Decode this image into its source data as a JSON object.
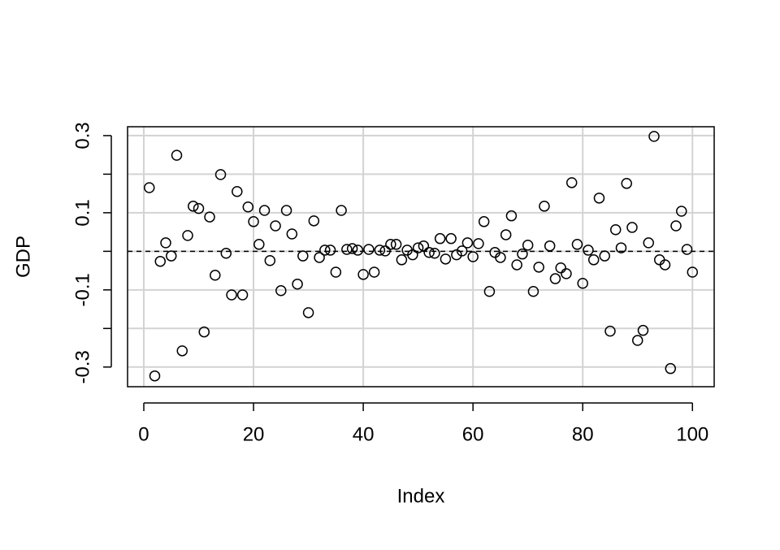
{
  "chart_data": {
    "type": "scatter",
    "x_label": "Index",
    "y_label": "GDP",
    "x": [
      1,
      2,
      3,
      4,
      5,
      6,
      7,
      8,
      9,
      10,
      11,
      12,
      13,
      14,
      15,
      16,
      17,
      18,
      19,
      20,
      21,
      22,
      23,
      24,
      25,
      26,
      27,
      28,
      29,
      30,
      31,
      32,
      33,
      34,
      35,
      36,
      37,
      38,
      39,
      40,
      41,
      42,
      43,
      44,
      45,
      46,
      47,
      48,
      49,
      50,
      51,
      52,
      53,
      54,
      55,
      56,
      57,
      58,
      59,
      60,
      61,
      62,
      63,
      64,
      65,
      66,
      67,
      68,
      69,
      70,
      71,
      72,
      73,
      74,
      75,
      76,
      77,
      78,
      79,
      80,
      81,
      82,
      83,
      84,
      85,
      86,
      87,
      88,
      89,
      90,
      91,
      92,
      93,
      94,
      95,
      96,
      97,
      98,
      99,
      100
    ],
    "series": [
      {
        "color": "#000000",
        "values": [
          0.165,
          -0.323,
          -0.026,
          0.022,
          -0.012,
          0.249,
          -0.258,
          0.041,
          0.117,
          0.111,
          -0.209,
          0.089,
          -0.062,
          0.199,
          -0.005,
          -0.113,
          0.155,
          -0.113,
          0.115,
          0.077,
          0.018,
          0.106,
          -0.024,
          0.066,
          -0.102,
          0.106,
          0.045,
          -0.085,
          -0.012,
          -0.159,
          0.079,
          -0.016,
          0.003,
          0.003,
          -0.054,
          0.106,
          0.005,
          0.007,
          0.003,
          -0.06,
          0.005,
          -0.054,
          0.003,
          0.001,
          0.018,
          0.018,
          -0.022,
          0.003,
          -0.009,
          0.009,
          0.014,
          -0.003,
          -0.005,
          0.033,
          -0.02,
          0.033,
          -0.009,
          0.001,
          0.022,
          -0.014,
          0.02,
          0.077,
          -0.104,
          -0.003,
          -0.016,
          0.043,
          0.092,
          -0.035,
          -0.007,
          0.016,
          -0.104,
          -0.041,
          0.117,
          0.014,
          -0.071,
          -0.043,
          -0.058,
          0.178,
          0.018,
          -0.083,
          0.003,
          -0.022,
          0.138,
          -0.012,
          -0.207,
          0.056,
          0.009,
          0.176,
          0.062,
          -0.231,
          -0.205,
          0.022,
          0.298,
          -0.022,
          -0.035,
          -0.304,
          0.066,
          0.104,
          0.005,
          -0.054
        ]
      }
    ],
    "xlim": [
      -2.96,
      103.96
    ],
    "ylim": [
      -0.351,
      0.323
    ],
    "xticks": [
      0,
      20,
      40,
      60,
      80,
      100
    ],
    "yticks": [
      -0.3,
      -0.2,
      -0.1,
      0,
      0.1,
      0.2,
      0.3
    ],
    "grid": true,
    "hline": 0
  }
}
